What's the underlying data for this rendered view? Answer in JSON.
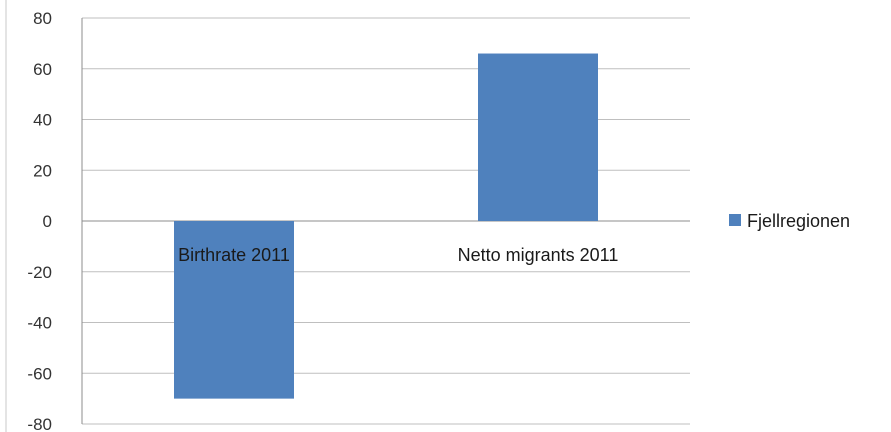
{
  "chart_data": {
    "type": "bar",
    "categories": [
      "Birthrate 2011",
      "Netto migrants 2011"
    ],
    "series": [
      {
        "name": "Fjellregionen",
        "values": [
          -70,
          66
        ],
        "color": "#4f81bd"
      }
    ],
    "y_ticks": [
      "80",
      "60",
      "40",
      "20",
      "0",
      "-20",
      "-40",
      "-60",
      "-80"
    ],
    "ylim": [
      -80,
      80
    ],
    "grid": true,
    "legend_position": "right"
  }
}
